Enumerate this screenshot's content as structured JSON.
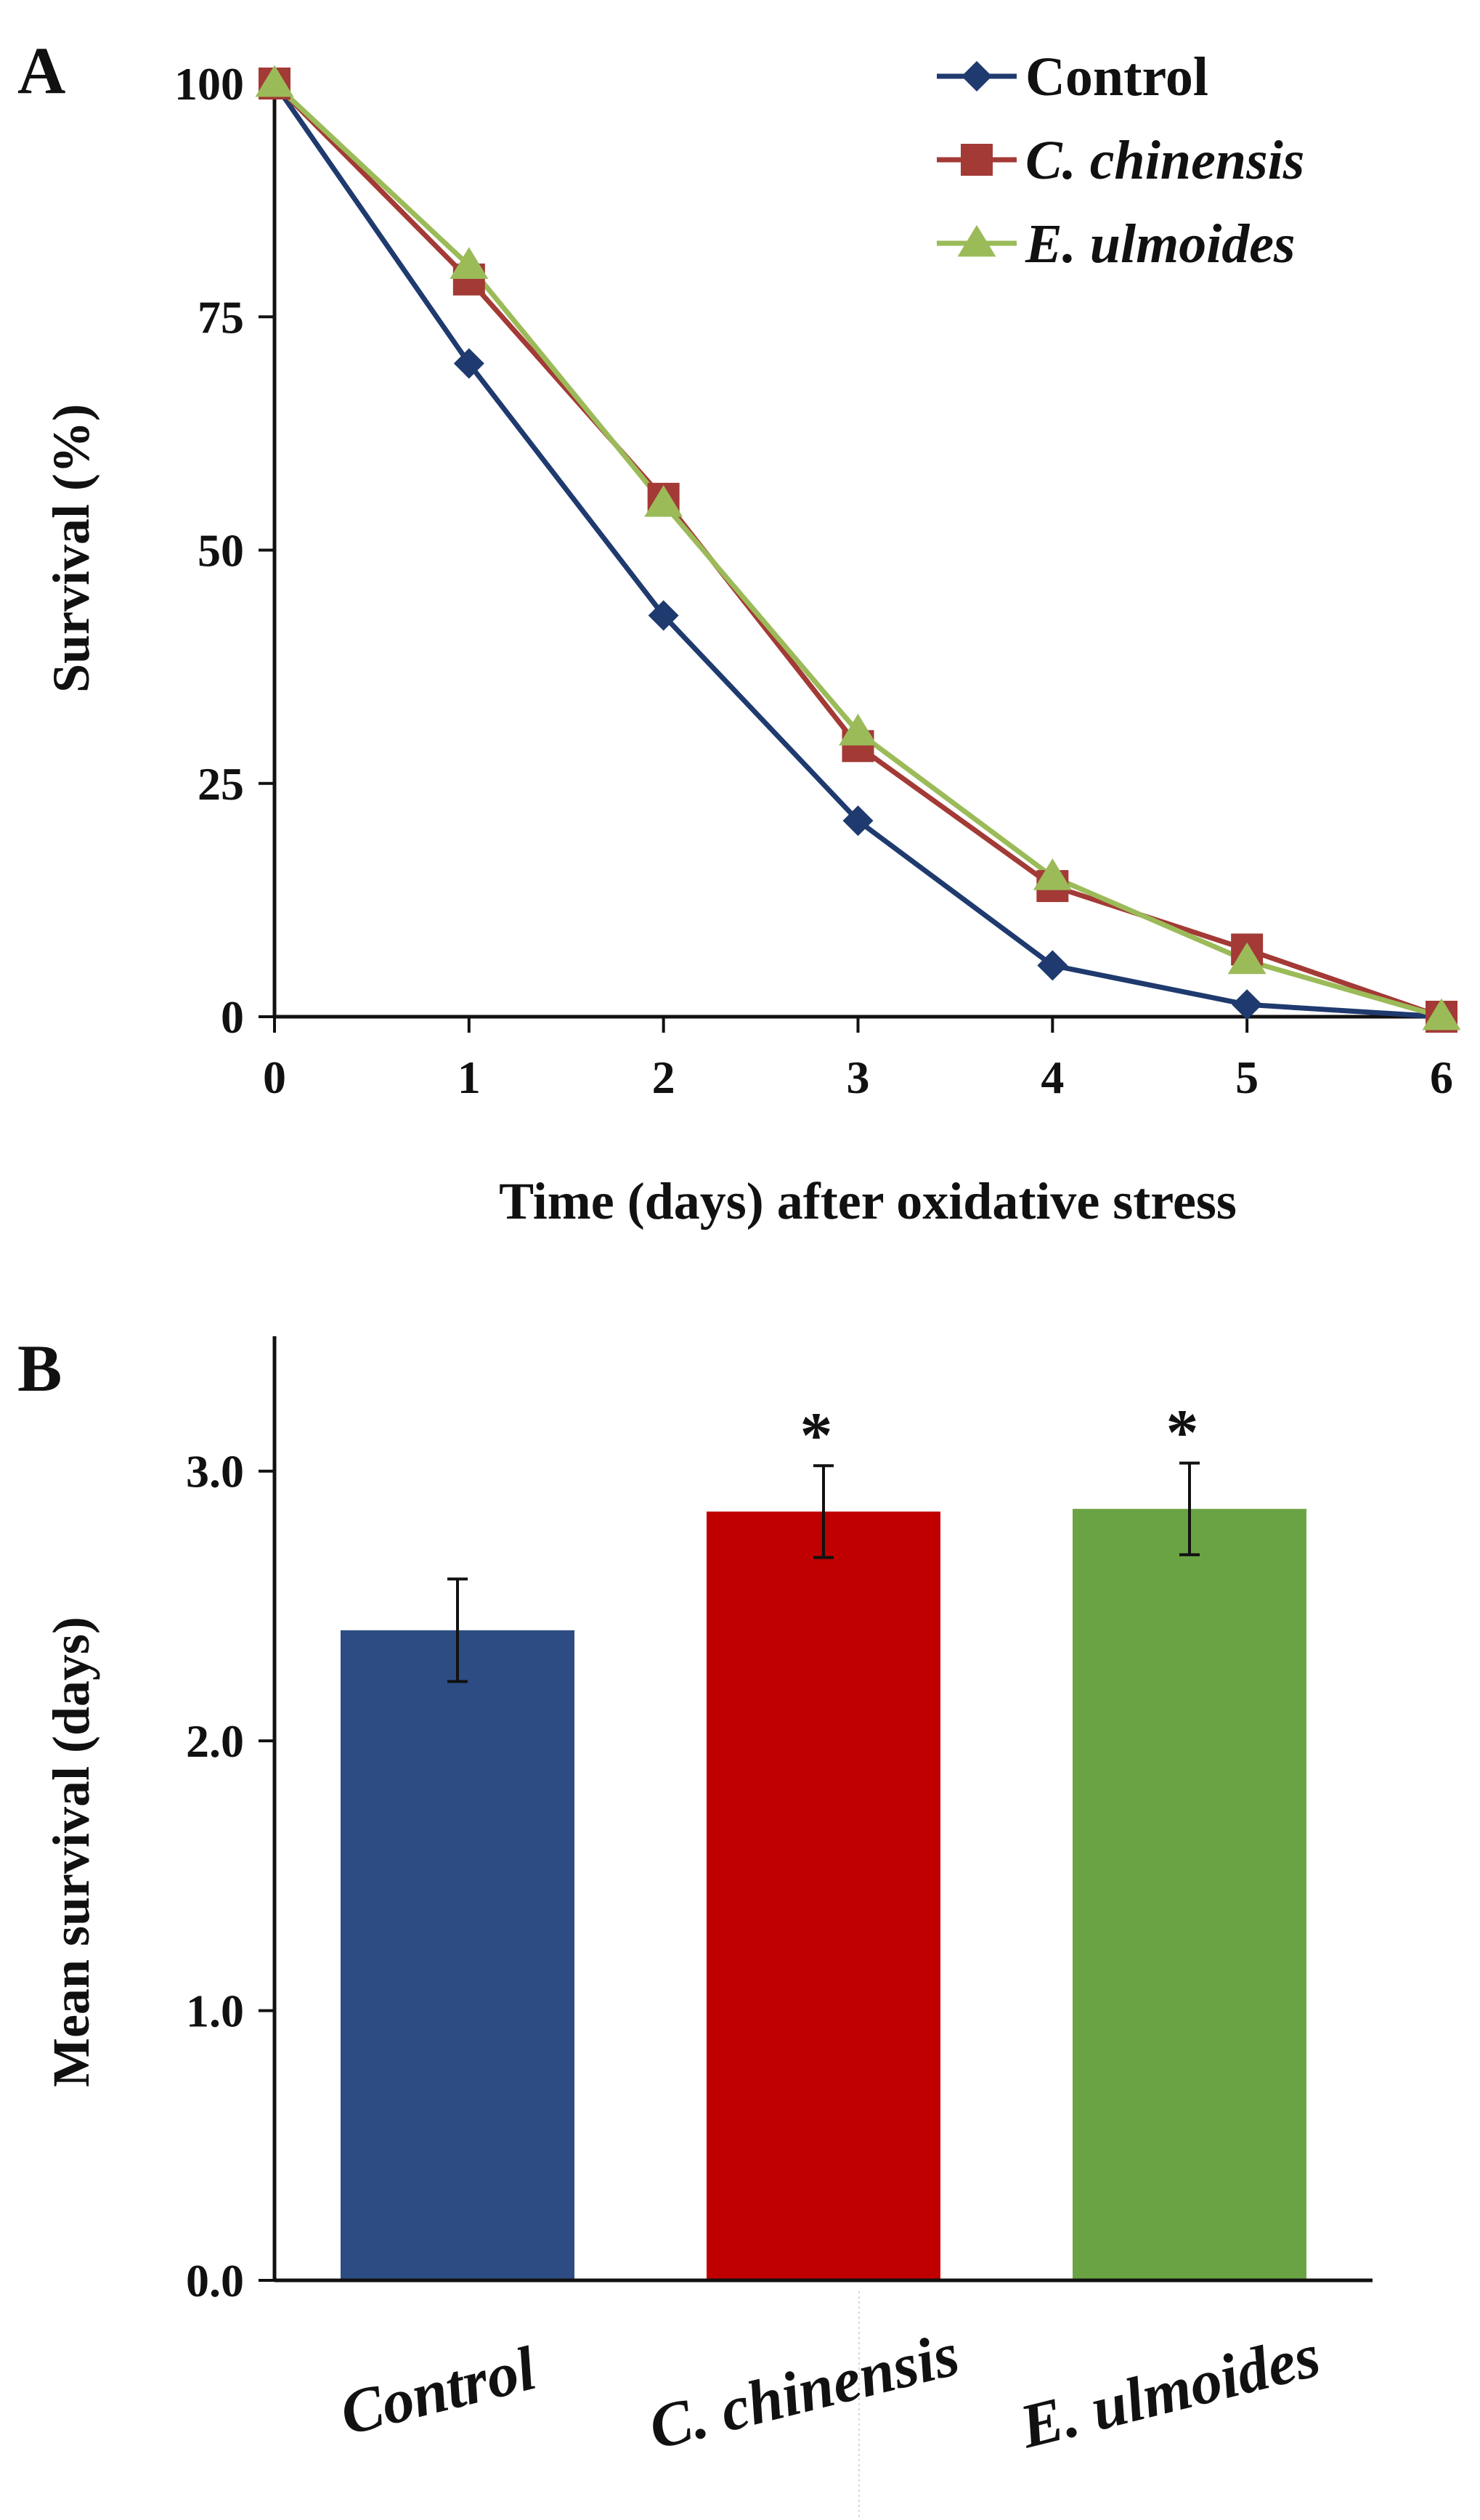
{
  "chart_data": [
    {
      "panel_label": "A",
      "type": "line",
      "xlabel": "Time (days) after oxidative stress",
      "ylabel": "Survival (%)",
      "x": [
        0,
        1,
        2,
        3,
        4,
        5,
        6
      ],
      "x_tick_labels": [
        "0",
        "1",
        "2",
        "3",
        "4",
        "5",
        "6"
      ],
      "y_tick_labels": [
        "0",
        "25",
        "50",
        "75",
        "100"
      ],
      "y_ticks": [
        0,
        25,
        50,
        75,
        100
      ],
      "xlim": [
        0,
        6
      ],
      "ylim": [
        0,
        100
      ],
      "grid": false,
      "legend_position": "top-right",
      "series": [
        {
          "name": "Control",
          "italic": false,
          "color": "#1f3a6e",
          "marker": "diamond",
          "values": [
            100,
            70,
            43,
            21,
            5.5,
            1.3,
            0
          ]
        },
        {
          "name": "C. chinensis",
          "italic": true,
          "color": "#a33a36",
          "marker": "square",
          "values": [
            100,
            79,
            55.5,
            29,
            14,
            7.2,
            0
          ]
        },
        {
          "name": "E. ulmoides",
          "italic": true,
          "color": "#9bbb59",
          "marker": "triangle",
          "values": [
            100,
            80.5,
            55,
            30.5,
            15,
            6,
            0
          ]
        }
      ]
    },
    {
      "panel_label": "B",
      "type": "bar",
      "ylabel": "Mean survival (days)",
      "categories": [
        "Control",
        "C. chinensis",
        "E. ulmoides"
      ],
      "values": [
        2.41,
        2.85,
        2.86
      ],
      "errors": [
        0.19,
        0.17,
        0.17
      ],
      "significance": [
        "",
        "*",
        "*"
      ],
      "colors": [
        "#2c4c83",
        "#c00000",
        "#6aa343"
      ],
      "y_tick_labels": [
        "0.0",
        "1.0",
        "2.0",
        "3.0"
      ],
      "y_ticks": [
        0,
        1,
        2,
        3
      ],
      "ylim": [
        0,
        3.5
      ],
      "grid": false
    }
  ]
}
